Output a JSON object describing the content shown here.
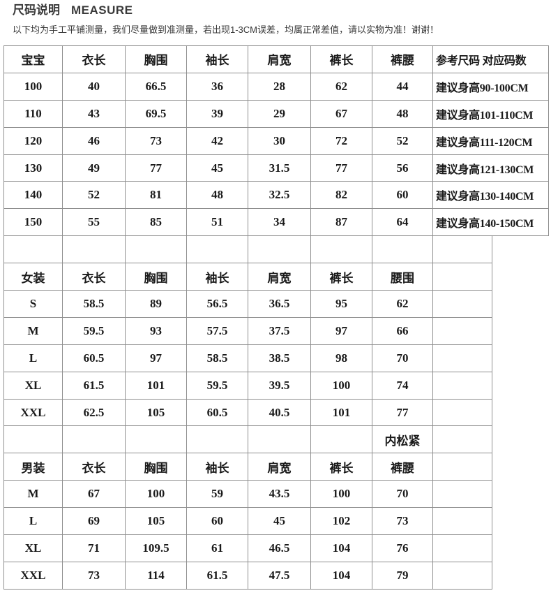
{
  "header": {
    "title_cn": "尺码说明",
    "title_en": "MEASURE",
    "subtitle": "以下均为手工平铺测量，我们尽量做到准测量，若出现1-3CM误差，均属正常差值，请以实物为准！谢谢！"
  },
  "baby_table": {
    "headers": [
      "宝宝",
      "衣长",
      "胸围",
      "袖长",
      "肩宽",
      "裤长",
      "裤腰",
      "参考尺码 对应码数"
    ],
    "rows": [
      [
        "100",
        "40",
        "66.5",
        "36",
        "28",
        "62",
        "44",
        "建议身高90-100CM"
      ],
      [
        "110",
        "43",
        "69.5",
        "39",
        "29",
        "67",
        "48",
        "建议身高101-110CM"
      ],
      [
        "120",
        "46",
        "73",
        "42",
        "30",
        "72",
        "52",
        "建议身高111-120CM"
      ],
      [
        "130",
        "49",
        "77",
        "45",
        "31.5",
        "77",
        "56",
        "建议身高121-130CM"
      ],
      [
        "140",
        "52",
        "81",
        "48",
        "32.5",
        "82",
        "60",
        "建议身高130-140CM"
      ],
      [
        "150",
        "55",
        "85",
        "51",
        "34",
        "87",
        "64",
        "建议身高140-150CM"
      ]
    ]
  },
  "women_table": {
    "headers": [
      "女装",
      "衣长",
      "胸围",
      "袖长",
      "肩宽",
      "裤长",
      "腰围",
      ""
    ],
    "rows": [
      [
        "S",
        "58.5",
        "89",
        "56.5",
        "36.5",
        "95",
        "62",
        ""
      ],
      [
        "M",
        "59.5",
        "93",
        "57.5",
        "37.5",
        "97",
        "66",
        ""
      ],
      [
        "L",
        "60.5",
        "97",
        "58.5",
        "38.5",
        "98",
        "70",
        ""
      ],
      [
        "XL",
        "61.5",
        "101",
        "59.5",
        "39.5",
        "100",
        "74",
        ""
      ],
      [
        "XXL",
        "62.5",
        "105",
        "60.5",
        "40.5",
        "101",
        "77",
        ""
      ]
    ],
    "note_row": [
      "",
      "",
      "",
      "",
      "",
      "",
      "内松紧",
      ""
    ]
  },
  "men_table": {
    "headers": [
      "男装",
      "衣长",
      "胸围",
      "袖长",
      "肩宽",
      "裤长",
      "裤腰",
      ""
    ],
    "rows": [
      [
        "M",
        "67",
        "100",
        "59",
        "43.5",
        "100",
        "70",
        ""
      ],
      [
        "L",
        "69",
        "105",
        "60",
        "45",
        "102",
        "73",
        ""
      ],
      [
        "XL",
        "71",
        "109.5",
        "61",
        "46.5",
        "104",
        "76",
        ""
      ],
      [
        "XXL",
        "73",
        "114",
        "61.5",
        "47.5",
        "104",
        "79",
        ""
      ]
    ]
  },
  "colors": {
    "border": "#8f8f8f",
    "text": "#1a1a1a",
    "title": "#3a3a3a",
    "background": "#ffffff"
  }
}
